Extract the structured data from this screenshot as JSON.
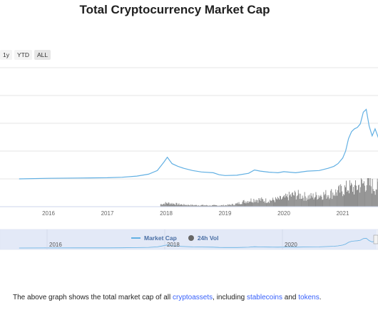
{
  "title": "Total Cryptocurrency Market Cap",
  "range_buttons": [
    "1y",
    "YTD",
    "ALL"
  ],
  "legend": {
    "market_cap": "Market Cap",
    "volume": "24h Vol"
  },
  "description": {
    "prefix": "The above graph shows the total market cap of all ",
    "link1": "cryptoassets",
    "middle": ", including ",
    "link2": "stablecoins",
    "and": " and ",
    "link3": "tokens",
    "suffix": "."
  },
  "colors": {
    "market_cap_line": "#62b0e3",
    "volume_bars": "#666666",
    "navigator_fill": "#dfe6f6",
    "link": "#3861fb"
  },
  "chart_data": {
    "type": "line",
    "x_tick_labels": [
      "2016",
      "2017",
      "2018",
      "2019",
      "2020",
      "2021"
    ],
    "navigator_tick_labels": [
      "2016",
      "2018",
      "2020"
    ],
    "series": [
      {
        "name": "Market Cap",
        "x": [
          2015.5,
          2016.0,
          2016.5,
          2017.0,
          2017.25,
          2017.5,
          2017.7,
          2017.85,
          2017.96,
          2018.02,
          2018.1,
          2018.2,
          2018.3,
          2018.45,
          2018.6,
          2018.8,
          2018.9,
          2019.0,
          2019.2,
          2019.4,
          2019.5,
          2019.6,
          2019.75,
          2019.9,
          2020.0,
          2020.2,
          2020.4,
          2020.6,
          2020.75,
          2020.85,
          2020.92,
          2021.0,
          2021.05,
          2021.1,
          2021.15,
          2021.2,
          2021.25,
          2021.3,
          2021.35,
          2021.4,
          2021.45,
          2021.5,
          2021.55,
          2021.62,
          2021.7
        ],
        "y": [
          0.0,
          0.02,
          0.03,
          0.04,
          0.06,
          0.1,
          0.17,
          0.3,
          0.6,
          0.78,
          0.55,
          0.45,
          0.38,
          0.3,
          0.25,
          0.22,
          0.15,
          0.12,
          0.13,
          0.2,
          0.32,
          0.28,
          0.24,
          0.22,
          0.26,
          0.22,
          0.28,
          0.3,
          0.38,
          0.45,
          0.55,
          0.75,
          1.0,
          1.45,
          1.7,
          1.8,
          1.85,
          1.98,
          2.4,
          2.5,
          1.9,
          1.55,
          1.8,
          1.4,
          2.0
        ]
      },
      {
        "name": "24h Vol",
        "x": [
          2017.9,
          2018.0,
          2018.1,
          2018.2,
          2018.3,
          2018.4,
          2018.5,
          2018.6,
          2018.7,
          2018.8,
          2018.9,
          2019.0,
          2019.1,
          2019.2,
          2019.3,
          2019.4,
          2019.5,
          2019.6,
          2019.7,
          2019.8,
          2019.9,
          2020.0,
          2020.1,
          2020.2,
          2020.3,
          2020.4,
          2020.5,
          2020.6,
          2020.7,
          2020.8,
          2020.9,
          2021.0,
          2021.1,
          2021.2,
          2021.3,
          2021.4,
          2021.5,
          2021.6,
          2021.7
        ],
        "y": [
          0.1,
          0.15,
          0.13,
          0.1,
          0.08,
          0.07,
          0.06,
          0.06,
          0.05,
          0.05,
          0.05,
          0.06,
          0.08,
          0.12,
          0.2,
          0.25,
          0.3,
          0.28,
          0.25,
          0.27,
          0.3,
          0.35,
          0.45,
          0.5,
          0.45,
          0.4,
          0.42,
          0.48,
          0.5,
          0.55,
          0.6,
          0.7,
          0.8,
          0.75,
          0.9,
          1.0,
          0.85,
          0.8,
          0.9
        ]
      }
    ],
    "x_range": [
      2015.5,
      2021.6
    ],
    "grid": true,
    "legend_position": "bottom-center"
  }
}
